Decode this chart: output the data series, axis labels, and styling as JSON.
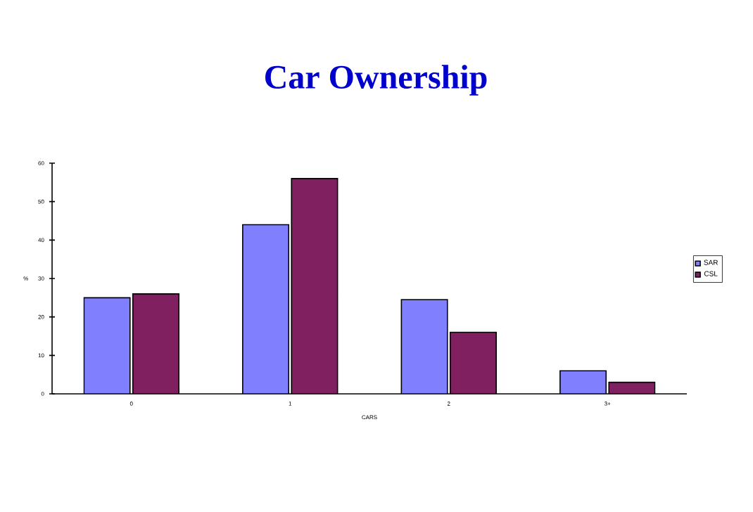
{
  "chart_data": {
    "type": "bar",
    "title": "Car Ownership",
    "xlabel": "CARS",
    "ylabel": "%",
    "categories": [
      "0",
      "1",
      "2",
      "3+"
    ],
    "series": [
      {
        "name": "SAR",
        "color": "#8080ff",
        "values": [
          25,
          44,
          24.5,
          6
        ]
      },
      {
        "name": "CSL",
        "color": "#802060",
        "values": [
          26,
          56,
          16,
          3
        ]
      }
    ],
    "ylim": [
      0,
      60
    ],
    "yticks": [
      0,
      10,
      20,
      30,
      40,
      50,
      60
    ],
    "grid": false,
    "legend": "right"
  }
}
